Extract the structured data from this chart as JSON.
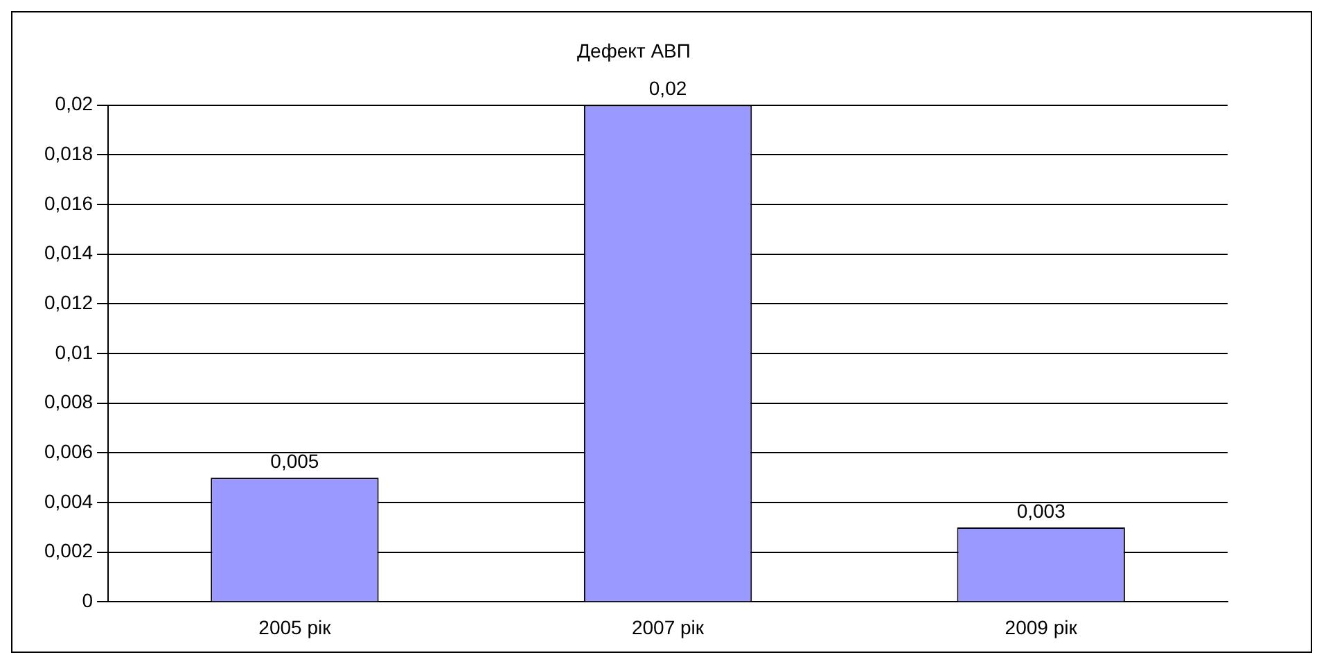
{
  "chart_data": {
    "type": "bar",
    "title": "Дефект АВП",
    "categories": [
      "2005 рік",
      "2007 рік",
      "2009 рік"
    ],
    "values": [
      0.005,
      0.02,
      0.003
    ],
    "value_labels": [
      "0,005",
      "0,02",
      "0,003"
    ],
    "color": "#9999ff",
    "ylim": [
      0,
      0.02
    ],
    "yticks": [
      {
        "value": 0,
        "label": "0"
      },
      {
        "value": 0.002,
        "label": "0,002"
      },
      {
        "value": 0.004,
        "label": "0,004"
      },
      {
        "value": 0.006,
        "label": "0,006"
      },
      {
        "value": 0.008,
        "label": "0,008"
      },
      {
        "value": 0.01,
        "label": "0,01"
      },
      {
        "value": 0.012,
        "label": "0,012"
      },
      {
        "value": 0.014,
        "label": "0,014"
      },
      {
        "value": 0.016,
        "label": "0,016"
      },
      {
        "value": 0.018,
        "label": "0,018"
      },
      {
        "value": 0.02,
        "label": "0,02"
      }
    ],
    "grid": "y",
    "legend": false
  }
}
